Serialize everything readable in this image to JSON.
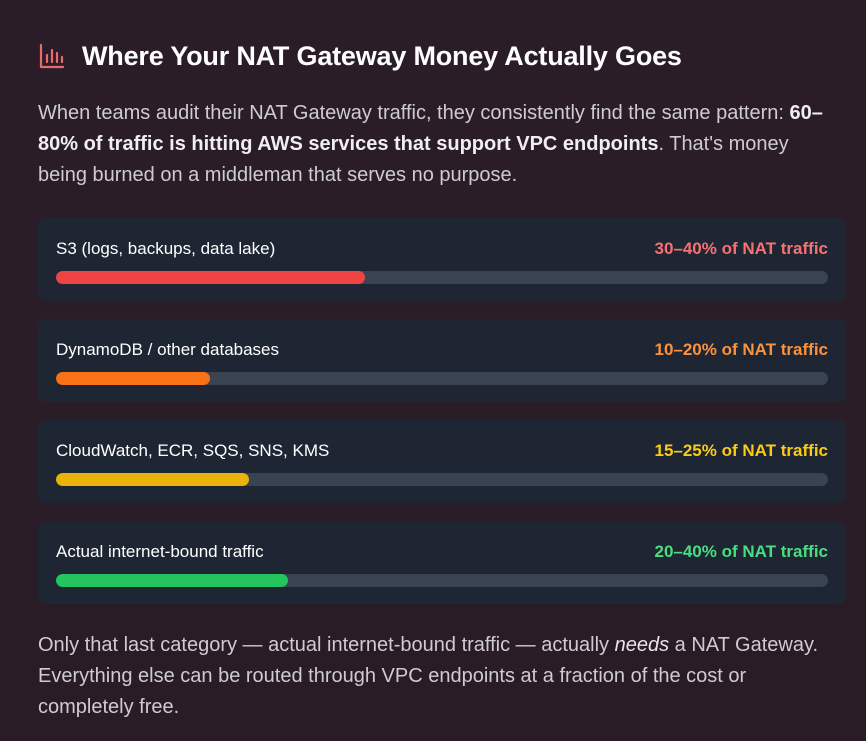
{
  "header": {
    "icon": "bar-chart-icon",
    "icon_color": "#e86a6a",
    "title": "Where Your NAT Gateway Money Actually Goes"
  },
  "intro": {
    "text_before": "When teams audit their NAT Gateway traffic, they consistently find the same pattern: ",
    "bold": "60–80% of traffic is hitting AWS services that support VPC endpoints",
    "text_after": ". That's money being burned on a middleman that serves no purpose."
  },
  "bars": [
    {
      "label": "S3 (logs, backups, data lake)",
      "value_text": "30–40% of NAT traffic",
      "fill_fraction": 0.4,
      "color": "#ef4444",
      "value_color": "#f87171"
    },
    {
      "label": "DynamoDB / other databases",
      "value_text": "10–20% of NAT traffic",
      "fill_fraction": 0.2,
      "color": "#f97316",
      "value_color": "#fb923c"
    },
    {
      "label": "CloudWatch, ECR, SQS, SNS, KMS",
      "value_text": "15–25% of NAT traffic",
      "fill_fraction": 0.25,
      "color": "#eab308",
      "value_color": "#facc15"
    },
    {
      "label": "Actual internet-bound traffic",
      "value_text": "20–40% of NAT traffic",
      "fill_fraction": 0.3,
      "color": "#22c55e",
      "value_color": "#4ade80"
    }
  ],
  "outro": {
    "text_before": "Only that last category — actual internet-bound traffic — actually ",
    "emphasis": "needs",
    "text_after": " a NAT Gateway. Everything else can be routed through VPC endpoints at a fraction of the cost or completely free."
  }
}
